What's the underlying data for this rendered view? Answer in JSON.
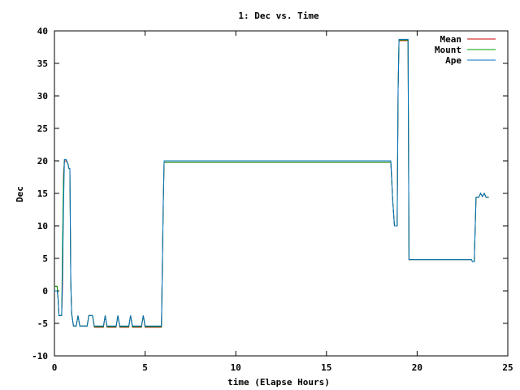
{
  "chart_data": {
    "type": "line",
    "title": "1: Dec vs. Time",
    "xlabel": "time (Elapse Hours)",
    "ylabel": "Dec",
    "xlim": [
      0,
      25
    ],
    "ylim": [
      -10,
      40
    ],
    "xticks": [
      0,
      5,
      10,
      15,
      20,
      25
    ],
    "yticks": [
      -10,
      -5,
      0,
      5,
      10,
      15,
      20,
      25,
      30,
      35,
      40
    ],
    "grid": false,
    "legend_position": "top-right",
    "series": [
      {
        "name": "Mean",
        "color": "#cc0000",
        "points": [
          [
            0,
            0.7
          ],
          [
            0.1,
            0.7
          ],
          [
            0.15,
            0.7
          ],
          [
            0.2,
            -1.2
          ],
          [
            0.25,
            -3.8
          ],
          [
            0.35,
            -3.8
          ],
          [
            0.4,
            -3.8
          ],
          [
            0.45,
            1
          ],
          [
            0.5,
            18
          ],
          [
            0.55,
            20
          ],
          [
            0.65,
            20
          ],
          [
            0.75,
            19.5
          ],
          [
            0.8,
            18.8
          ],
          [
            0.85,
            18.8
          ],
          [
            0.9,
            1.5
          ],
          [
            0.95,
            -3.5
          ],
          [
            1.05,
            -5.4
          ],
          [
            1.2,
            -5.4
          ],
          [
            1.3,
            -3.8
          ],
          [
            1.4,
            -5.4
          ],
          [
            1.8,
            -5.4
          ],
          [
            1.9,
            -3.8
          ],
          [
            2.1,
            -3.8
          ],
          [
            2.2,
            -5.6
          ],
          [
            2.7,
            -5.6
          ],
          [
            2.8,
            -3.8
          ],
          [
            2.9,
            -5.6
          ],
          [
            3.4,
            -5.6
          ],
          [
            3.5,
            -3.8
          ],
          [
            3.6,
            -5.6
          ],
          [
            4.1,
            -5.6
          ],
          [
            4.2,
            -3.8
          ],
          [
            4.3,
            -5.6
          ],
          [
            4.8,
            -5.6
          ],
          [
            4.9,
            -3.8
          ],
          [
            5.0,
            -5.6
          ],
          [
            5.9,
            -5.6
          ],
          [
            6.0,
            13
          ],
          [
            6.05,
            19.8
          ],
          [
            14.3,
            19.8
          ],
          [
            18.55,
            19.8
          ],
          [
            18.65,
            14
          ],
          [
            18.75,
            10
          ],
          [
            18.9,
            10
          ],
          [
            18.95,
            31
          ],
          [
            19.0,
            38.5
          ],
          [
            19.5,
            38.5
          ],
          [
            19.55,
            4.8
          ],
          [
            23.0,
            4.8
          ],
          [
            23.05,
            4.5
          ],
          [
            23.15,
            4.5
          ],
          [
            23.25,
            14.4
          ],
          [
            23.4,
            14.4
          ],
          [
            23.5,
            15
          ],
          [
            23.6,
            14.5
          ],
          [
            23.7,
            15
          ],
          [
            23.8,
            14.4
          ],
          [
            23.95,
            14.4
          ]
        ]
      },
      {
        "name": "Mount",
        "color": "#00a000",
        "points": [
          [
            0,
            0.7
          ],
          [
            0.1,
            0.7
          ],
          [
            0.15,
            0.7
          ],
          [
            0.2,
            -1.2
          ],
          [
            0.25,
            -3.8
          ],
          [
            0.4,
            -3.8
          ],
          [
            0.45,
            8
          ],
          [
            0.5,
            17
          ],
          [
            0.55,
            20.2
          ],
          [
            0.65,
            20.2
          ],
          [
            0.75,
            19.5
          ],
          [
            0.8,
            18.8
          ],
          [
            0.85,
            18.8
          ],
          [
            0.9,
            1.5
          ],
          [
            0.95,
            -3.5
          ],
          [
            1.05,
            -5.4
          ],
          [
            1.2,
            -5.4
          ],
          [
            1.3,
            -3.8
          ],
          [
            1.4,
            -5.4
          ],
          [
            1.8,
            -5.4
          ],
          [
            1.9,
            -3.8
          ],
          [
            2.1,
            -3.8
          ],
          [
            2.2,
            -5.5
          ],
          [
            2.7,
            -5.5
          ],
          [
            2.8,
            -3.8
          ],
          [
            2.9,
            -5.5
          ],
          [
            3.4,
            -5.5
          ],
          [
            3.5,
            -3.8
          ],
          [
            3.6,
            -5.5
          ],
          [
            4.1,
            -5.5
          ],
          [
            4.2,
            -3.8
          ],
          [
            4.3,
            -5.5
          ],
          [
            4.8,
            -5.5
          ],
          [
            4.9,
            -3.8
          ],
          [
            5.0,
            -5.5
          ],
          [
            5.9,
            -5.5
          ],
          [
            6.0,
            13
          ],
          [
            6.05,
            19.8
          ],
          [
            18.55,
            19.8
          ],
          [
            18.65,
            14
          ],
          [
            18.75,
            10
          ],
          [
            18.9,
            10
          ],
          [
            18.95,
            31
          ],
          [
            19.0,
            38.6
          ],
          [
            19.5,
            38.6
          ],
          [
            19.55,
            4.8
          ],
          [
            23.0,
            4.8
          ],
          [
            23.05,
            4.5
          ],
          [
            23.15,
            4.5
          ],
          [
            23.25,
            14.4
          ],
          [
            23.4,
            14.4
          ],
          [
            23.5,
            15
          ],
          [
            23.6,
            14.5
          ],
          [
            23.7,
            15
          ],
          [
            23.8,
            14.4
          ],
          [
            23.95,
            14.4
          ]
        ]
      },
      {
        "name": "Ape",
        "color": "#0070c0",
        "points": [
          [
            0,
            0
          ],
          [
            0.1,
            0
          ],
          [
            0.15,
            0
          ],
          [
            0.2,
            -1.2
          ],
          [
            0.25,
            -3.8
          ],
          [
            0.4,
            -3.8
          ],
          [
            0.45,
            3
          ],
          [
            0.5,
            13
          ],
          [
            0.55,
            20.2
          ],
          [
            0.65,
            20.2
          ],
          [
            0.75,
            19.5
          ],
          [
            0.8,
            18.8
          ],
          [
            0.85,
            18.8
          ],
          [
            0.9,
            1.5
          ],
          [
            0.95,
            -3.5
          ],
          [
            1.05,
            -5.4
          ],
          [
            1.2,
            -5.4
          ],
          [
            1.3,
            -3.8
          ],
          [
            1.4,
            -5.4
          ],
          [
            1.8,
            -5.4
          ],
          [
            1.9,
            -3.8
          ],
          [
            2.1,
            -3.8
          ],
          [
            2.2,
            -5.4
          ],
          [
            2.7,
            -5.4
          ],
          [
            2.8,
            -3.8
          ],
          [
            2.9,
            -5.4
          ],
          [
            3.4,
            -5.4
          ],
          [
            3.5,
            -3.8
          ],
          [
            3.6,
            -5.4
          ],
          [
            4.1,
            -5.4
          ],
          [
            4.2,
            -3.8
          ],
          [
            4.3,
            -5.4
          ],
          [
            4.8,
            -5.4
          ],
          [
            4.9,
            -3.8
          ],
          [
            5.0,
            -5.4
          ],
          [
            5.9,
            -5.4
          ],
          [
            6.0,
            13
          ],
          [
            6.05,
            20
          ],
          [
            14.3,
            20
          ],
          [
            18.55,
            20
          ],
          [
            18.65,
            14
          ],
          [
            18.75,
            10
          ],
          [
            18.9,
            10
          ],
          [
            18.95,
            31
          ],
          [
            19.0,
            38.7
          ],
          [
            19.5,
            38.7
          ],
          [
            19.55,
            4.8
          ],
          [
            23.0,
            4.8
          ],
          [
            23.05,
            4.5
          ],
          [
            23.15,
            4.5
          ],
          [
            23.25,
            14.4
          ],
          [
            23.4,
            14.4
          ],
          [
            23.5,
            15
          ],
          [
            23.6,
            14.5
          ],
          [
            23.7,
            15
          ],
          [
            23.8,
            14.4
          ],
          [
            23.95,
            14.4
          ]
        ]
      }
    ]
  }
}
